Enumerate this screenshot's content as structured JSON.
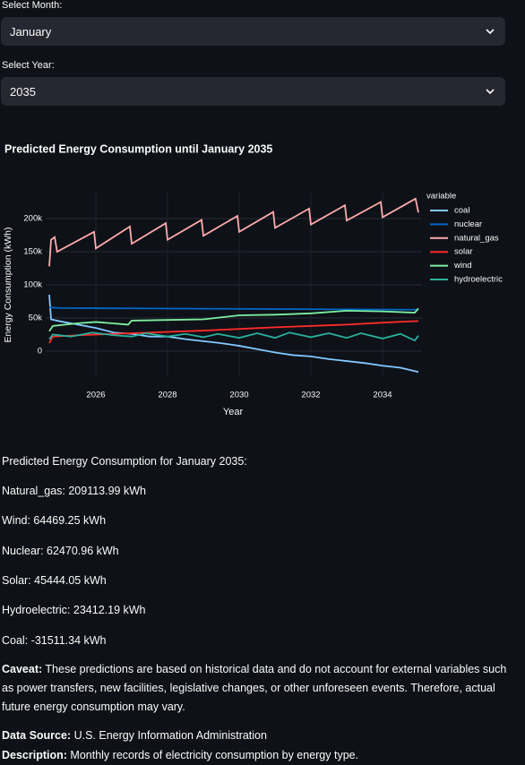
{
  "month_select": {
    "label": "Select Month:",
    "value": "January"
  },
  "year_select": {
    "label": "Select Year:",
    "value": "2035"
  },
  "chart_data": {
    "type": "line",
    "title": "Predicted Energy Consumption until January 2035",
    "x_label": "Year",
    "y_label": "Energy Consumption (kWh)",
    "legend_title": "variable",
    "legend": "right",
    "grid": true,
    "xlim": [
      2024.6,
      2035.1
    ],
    "xticks": [
      2026,
      2028,
      2030,
      2032,
      2034
    ],
    "ylim": [
      -38000,
      240000
    ],
    "yticks": [
      0,
      {
        "value": 50000,
        "label": "50k"
      },
      {
        "value": 100000,
        "label": "100k"
      },
      {
        "value": 150000,
        "label": "150k"
      },
      {
        "value": 200000,
        "label": "200k"
      }
    ],
    "series": [
      {
        "name": "coal",
        "color": "#83c9ff",
        "x": [
          2024.7,
          2024.75,
          2025.0,
          2025.5,
          2026.0,
          2026.5,
          2027.0,
          2027.5,
          2028.0,
          2028.5,
          2029.0,
          2029.5,
          2030.0,
          2030.5,
          2031.0,
          2031.5,
          2032.0,
          2032.5,
          2033.0,
          2033.5,
          2034.0,
          2034.5,
          2035.0
        ],
        "values": [
          85000,
          48000,
          45000,
          40000,
          35000,
          28000,
          26000,
          22000,
          22000,
          18000,
          15000,
          12000,
          8000,
          3000,
          -2000,
          -6000,
          -8000,
          -12000,
          -15000,
          -18000,
          -22000,
          -25000,
          -31511.34
        ]
      },
      {
        "name": "nuclear",
        "color": "#0068c9",
        "x": [
          2024.7,
          2025.0,
          2027.0,
          2029.0,
          2031.0,
          2033.0,
          2035.0
        ],
        "values": [
          66000,
          65000,
          64500,
          64000,
          63500,
          63000,
          62470.96
        ]
      },
      {
        "name": "natural_gas",
        "color": "#ffabab",
        "x": [
          2024.7,
          2024.75,
          2024.85,
          2024.92,
          2025.95,
          2026.0,
          2026.95,
          2027.0,
          2027.95,
          2028.0,
          2028.95,
          2029.0,
          2029.95,
          2030.0,
          2030.95,
          2031.0,
          2031.95,
          2032.0,
          2032.95,
          2033.0,
          2033.95,
          2034.0,
          2034.92,
          2035.0
        ],
        "values": [
          128000,
          168000,
          172000,
          150000,
          180000,
          155000,
          188000,
          162000,
          193000,
          168000,
          198000,
          174000,
          204000,
          180000,
          210000,
          186000,
          215000,
          191000,
          220000,
          197000,
          225000,
          202000,
          230000,
          209113.99
        ]
      },
      {
        "name": "solar",
        "color": "#ff2b2b",
        "x": [
          2024.7,
          2024.8,
          2025.5,
          2027,
          2029,
          2031,
          2033,
          2034,
          2035
        ],
        "values": [
          12000,
          22000,
          24000,
          27000,
          31000,
          36000,
          40000,
          43000,
          45444.05
        ]
      },
      {
        "name": "wind",
        "color": "#7defa1",
        "x": [
          2024.7,
          2024.8,
          2025.5,
          2026,
          2026.9,
          2027,
          2028,
          2029,
          2030,
          2031,
          2032,
          2033,
          2034,
          2034.9,
          2035
        ],
        "values": [
          30000,
          38000,
          42000,
          44000,
          40000,
          46000,
          47000,
          48000,
          54000,
          55000,
          57000,
          61000,
          60000,
          58000,
          64469.25
        ]
      },
      {
        "name": "hydroelectric",
        "color": "#29b09d",
        "x": [
          2024.7,
          2024.8,
          2025.3,
          2025.9,
          2026.5,
          2027,
          2027.4,
          2028,
          2028.5,
          2029,
          2029.4,
          2030,
          2030.5,
          2031,
          2031.4,
          2032,
          2032.5,
          2033,
          2033.4,
          2034,
          2034.5,
          2034.9,
          2035
        ],
        "values": [
          18000,
          25000,
          22000,
          28000,
          24000,
          22000,
          27000,
          22000,
          26000,
          21000,
          26000,
          20000,
          27000,
          20000,
          28000,
          21000,
          27000,
          20000,
          27000,
          19000,
          26000,
          16000,
          23412.19
        ]
      }
    ]
  },
  "results": {
    "heading": "Predicted Energy Consumption for January 2035:",
    "lines": [
      "Natural_gas: 209113.99 kWh",
      "Wind: 64469.25 kWh",
      "Nuclear: 62470.96 kWh",
      "Solar: 45444.05 kWh",
      "Hydroelectric: 23412.19 kWh",
      "Coal: -31511.34 kWh"
    ]
  },
  "caveat": {
    "label": "Caveat:",
    "text": " These predictions are based on historical data and do not account for external variables such as power transfers, new facilities, legislative changes, or other unforeseen events. Therefore, actual future energy consumption may vary."
  },
  "source": {
    "label": "Data Source:",
    "text": " U.S. Energy Information Administration"
  },
  "description": {
    "label": "Description:",
    "text": " Monthly records of electricity consumption by energy type."
  }
}
